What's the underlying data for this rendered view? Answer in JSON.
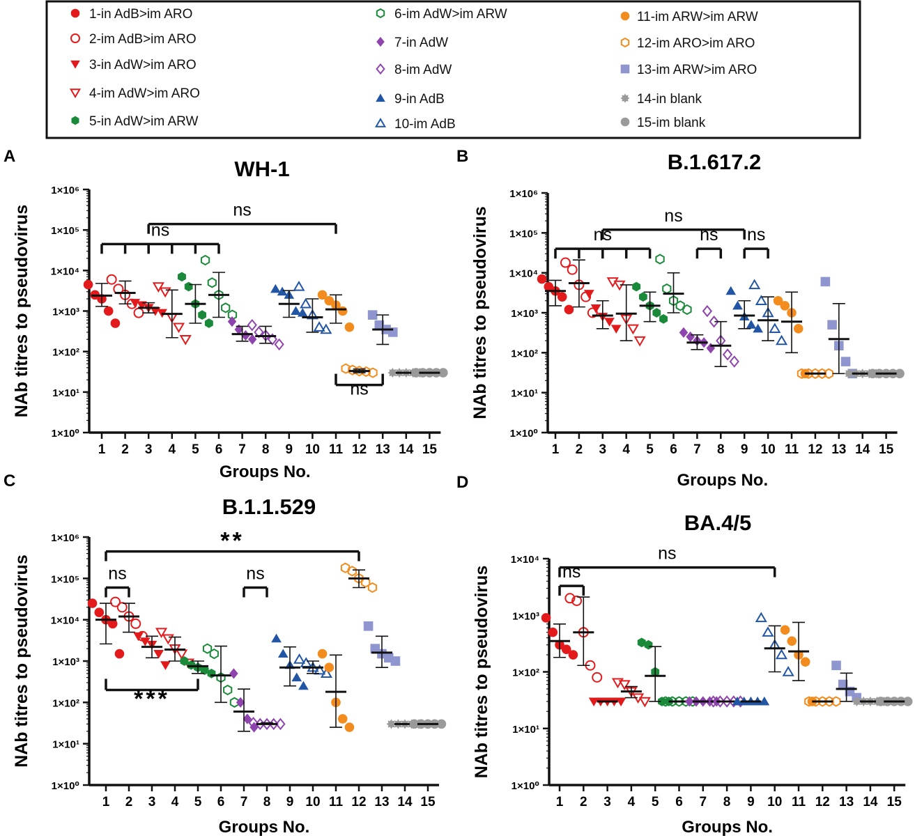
{
  "legend": [
    {
      "label": "1-in AdB>im ARO",
      "color": "#e31a1c",
      "marker": "circle-filled"
    },
    {
      "label": "2-im AdB>im ARO",
      "color": "#e31a1c",
      "marker": "circle-open"
    },
    {
      "label": "3-in AdW>im ARO",
      "color": "#e31a1c",
      "marker": "triangle-down-filled"
    },
    {
      "label": "4-im AdW>im ARO",
      "color": "#e31a1c",
      "marker": "triangle-down-open"
    },
    {
      "label": "5-in AdW>im ARW",
      "color": "#1a8a3a",
      "marker": "hexagon-filled"
    },
    {
      "label": "6-im AdW>im ARW",
      "color": "#1a8a3a",
      "marker": "hexagon-open"
    },
    {
      "label": "7-in AdW",
      "color": "#8e44ad",
      "marker": "diamond-filled"
    },
    {
      "label": "8-im AdW",
      "color": "#8e44ad",
      "marker": "diamond-open"
    },
    {
      "label": "9-in AdB",
      "color": "#2255a4",
      "marker": "triangle-up-filled"
    },
    {
      "label": "10-im AdB",
      "color": "#2255a4",
      "marker": "triangle-up-open"
    },
    {
      "label": "11-im ARW>im ARW",
      "color": "#f28c1e",
      "marker": "circle-filled"
    },
    {
      "label": "12-im ARO>im ARO",
      "color": "#f28c1e",
      "marker": "hexagon-open"
    },
    {
      "label": "13-im ARW>im ARO",
      "color": "#8f96cf",
      "marker": "square-filled"
    },
    {
      "label": "14-in blank",
      "color": "#9a9a9a",
      "marker": "star-filled"
    },
    {
      "label": "15-im blank",
      "color": "#9a9a9a",
      "marker": "circle-filled"
    }
  ],
  "chart_data": [
    {
      "panel": "A",
      "type": "scatter",
      "title": "WH-1",
      "xlabel": "Groups No.",
      "ylabel": "NAb titres to pseudovirus",
      "yscale": "log",
      "ylim": [
        1,
        1000000
      ],
      "yticks": [
        "1×10⁰",
        "1×10¹",
        "1×10²",
        "1×10³",
        "1×10⁴",
        "1×10⁵",
        "1×10⁶"
      ],
      "categories": [
        "1",
        "2",
        "3",
        "4",
        "5",
        "6",
        "7",
        "8",
        "9",
        "10",
        "11",
        "12",
        "13",
        "14",
        "15"
      ],
      "series": [
        {
          "group": 1,
          "values": [
            4500,
            2500,
            2000,
            1000,
            500
          ],
          "mean": 2400,
          "sd_low": 1300,
          "sd_high": 4800
        },
        {
          "group": 2,
          "values": [
            6000,
            3500,
            2500,
            1500,
            900
          ],
          "mean": 2800,
          "sd_low": 1500,
          "sd_high": 5500
        },
        {
          "group": 3,
          "values": [
            1600,
            1400,
            1200,
            1000,
            900
          ],
          "mean": 1200,
          "sd_low": 900,
          "sd_high": 1600
        },
        {
          "group": 4,
          "values": [
            4000,
            3000,
            700,
            400,
            200
          ],
          "mean": 850,
          "sd_low": 220,
          "sd_high": 3300
        },
        {
          "group": 5,
          "values": [
            7000,
            4000,
            1500,
            800,
            500
          ],
          "mean": 1500,
          "sd_low": 500,
          "sd_high": 4500
        },
        {
          "group": 6,
          "values": [
            18000,
            5000,
            2500,
            1200,
            800
          ],
          "mean": 2500,
          "sd_low": 700,
          "sd_high": 9000
        },
        {
          "group": 7,
          "values": [
            550,
            350,
            250,
            200
          ],
          "mean": 270,
          "sd_low": 180,
          "sd_high": 420
        },
        {
          "group": 8,
          "values": [
            450,
            300,
            250,
            200,
            150
          ],
          "mean": 240,
          "sd_low": 160,
          "sd_high": 420
        },
        {
          "group": 9,
          "values": [
            3500,
            3000,
            2500,
            1000,
            900
          ],
          "mean": 1500,
          "sd_low": 700,
          "sd_high": 3200
        },
        {
          "group": 10,
          "values": [
            4000,
            1500,
            800,
            400,
            350
          ],
          "mean": 700,
          "sd_low": 300,
          "sd_high": 2000
        },
        {
          "group": 11,
          "values": [
            2500,
            1800,
            1400,
            1000,
            400
          ],
          "mean": 1100,
          "sd_low": 500,
          "sd_high": 2500
        },
        {
          "group": 12,
          "values": [
            38,
            35,
            33,
            32,
            30
          ],
          "mean": 33,
          "sd_low": 30,
          "sd_high": 37
        },
        {
          "group": 13,
          "values": [
            800,
            450,
            350,
            300
          ],
          "mean": 350,
          "sd_low": 150,
          "sd_high": 800
        },
        {
          "group": 14,
          "values": [
            30,
            30,
            30,
            30,
            30
          ],
          "mean": 30,
          "sd_low": 30,
          "sd_high": 30
        },
        {
          "group": 15,
          "values": [
            30,
            30,
            30,
            30,
            30
          ],
          "mean": 30,
          "sd_low": 30,
          "sd_high": 30
        }
      ],
      "annotations": [
        {
          "text": "ns",
          "from": 1,
          "to": 6,
          "y": 45000,
          "ticks": [
            1,
            2,
            3,
            4,
            5,
            6
          ]
        },
        {
          "text": "ns",
          "from": 3,
          "to": 11,
          "y": 140000
        },
        {
          "text": "ns",
          "from": 11,
          "to": 13,
          "y": 15,
          "direction": "up"
        }
      ]
    },
    {
      "panel": "B",
      "type": "scatter",
      "title": "B.1.617.2",
      "xlabel": "Groups No.",
      "ylabel": "NAb titres to pseudovirus",
      "yscale": "log",
      "ylim": [
        1,
        1000000
      ],
      "yticks": [
        "1×10⁰",
        "1×10¹",
        "1×10²",
        "1×10³",
        "1×10⁴",
        "1×10⁵",
        "1×10⁶"
      ],
      "categories": [
        "1",
        "2",
        "3",
        "4",
        "5",
        "6",
        "7",
        "8",
        "9",
        "10",
        "11",
        "12",
        "13",
        "14",
        "15"
      ],
      "series": [
        {
          "group": 1,
          "values": [
            7000,
            4500,
            3500,
            2500,
            1200
          ],
          "mean": 3500,
          "sd_low": 1500,
          "sd_high": 6500
        },
        {
          "group": 2,
          "values": [
            18000,
            12000,
            5000,
            2500,
            1000
          ],
          "mean": 5500,
          "sd_low": 1400,
          "sd_high": 21000
        },
        {
          "group": 3,
          "values": [
            3000,
            1300,
            800,
            600,
            400
          ],
          "mean": 850,
          "sd_low": 400,
          "sd_high": 2000
        },
        {
          "group": 4,
          "values": [
            6000,
            5000,
            700,
            400,
            200
          ],
          "mean": 950,
          "sd_low": 200,
          "sd_high": 5000
        },
        {
          "group": 5,
          "values": [
            4500,
            2500,
            1500,
            1000,
            700
          ],
          "mean": 1500,
          "sd_low": 600,
          "sd_high": 3300
        },
        {
          "group": 6,
          "values": [
            22000,
            4000,
            2000,
            1500,
            1200
          ],
          "mean": 3000,
          "sd_low": 1000,
          "sd_high": 10000
        },
        {
          "group": 7,
          "values": [
            320,
            250,
            200,
            180,
            130
          ],
          "mean": 180,
          "sd_low": 120,
          "sd_high": 280
        },
        {
          "group": 8,
          "values": [
            1100,
            600,
            200,
            90,
            60
          ],
          "mean": 150,
          "sd_low": 45,
          "sd_high": 600
        },
        {
          "group": 9,
          "values": [
            3500,
            1500,
            800,
            500,
            400
          ],
          "mean": 850,
          "sd_low": 400,
          "sd_high": 2000
        },
        {
          "group": 10,
          "values": [
            5000,
            2000,
            1000,
            400,
            200
          ],
          "mean": 650,
          "sd_low": 200,
          "sd_high": 2500
        },
        {
          "group": 11,
          "values": [
            2000,
            1500,
            1000,
            400,
            30
          ],
          "mean": 600,
          "sd_low": 100,
          "sd_high": 3300
        },
        {
          "group": 12,
          "values": [
            30,
            30,
            30,
            30,
            30
          ],
          "mean": 30,
          "sd_low": 30,
          "sd_high": 30
        },
        {
          "group": 13,
          "values": [
            6000,
            500,
            150,
            60,
            30
          ],
          "mean": 220,
          "sd_low": 30,
          "sd_high": 1700
        },
        {
          "group": 14,
          "values": [
            30,
            30,
            30,
            30,
            30
          ],
          "mean": 30,
          "sd_low": 30,
          "sd_high": 30
        },
        {
          "group": 15,
          "values": [
            30,
            30,
            30,
            30,
            30
          ],
          "mean": 30,
          "sd_low": 30,
          "sd_high": 30
        }
      ],
      "annotations": [
        {
          "text": "ns",
          "from": 1,
          "to": 5,
          "y": 40000,
          "ticks": [
            1,
            2,
            3,
            4,
            5
          ]
        },
        {
          "text": "ns",
          "from": 3,
          "to": 9,
          "y": 120000
        },
        {
          "text": "ns",
          "from": 7,
          "to": 8,
          "y": 40000
        },
        {
          "text": "ns",
          "from": 9,
          "to": 10,
          "y": 40000
        }
      ]
    },
    {
      "panel": "C",
      "type": "scatter",
      "title": "B.1.1.529",
      "xlabel": "Groups No.",
      "ylabel": "NAb titres to pseudovirus",
      "yscale": "log",
      "ylim": [
        1,
        1000000
      ],
      "yticks": [
        "1×10⁰",
        "1×10¹",
        "1×10²",
        "1×10³",
        "1×10⁴",
        "1×10⁵",
        "1×10⁶"
      ],
      "categories": [
        "1",
        "2",
        "3",
        "4",
        "5",
        "6",
        "7",
        "8",
        "9",
        "10",
        "11",
        "12",
        "13",
        "14",
        "15"
      ],
      "series": [
        {
          "group": 1,
          "values": [
            25000,
            15000,
            10000,
            8000,
            1500
          ],
          "mean": 10000,
          "sd_low": 2600,
          "sd_high": 25000
        },
        {
          "group": 2,
          "values": [
            27000,
            20000,
            12000,
            8000,
            4000
          ],
          "mean": 12000,
          "sd_low": 5000,
          "sd_high": 25000
        },
        {
          "group": 3,
          "values": [
            4000,
            3000,
            2500,
            1500,
            800
          ],
          "mean": 2200,
          "sd_low": 1200,
          "sd_high": 4000
        },
        {
          "group": 4,
          "values": [
            5000,
            3500,
            2000,
            1500,
            900
          ],
          "mean": 1900,
          "sd_low": 1000,
          "sd_high": 3800
        },
        {
          "group": 5,
          "values": [
            1000,
            800,
            700,
            600,
            500
          ],
          "mean": 750,
          "sd_low": 500,
          "sd_high": 1000
        },
        {
          "group": 6,
          "values": [
            2000,
            1500,
            400,
            200,
            100
          ],
          "mean": 450,
          "sd_low": 100,
          "sd_high": 2300
        },
        {
          "group": 7,
          "values": [
            500,
            100,
            40,
            25
          ],
          "mean": 60,
          "sd_low": 20,
          "sd_high": 210
        },
        {
          "group": 8,
          "values": [
            32,
            30,
            30,
            30,
            30
          ],
          "mean": 30,
          "sd_low": 30,
          "sd_high": 32
        },
        {
          "group": 9,
          "values": [
            3500,
            1500,
            800,
            400,
            250
          ],
          "mean": 700,
          "sd_low": 250,
          "sd_high": 2200
        },
        {
          "group": 10,
          "values": [
            1100,
            900,
            700,
            600,
            500
          ],
          "mean": 700,
          "sd_low": 500,
          "sd_high": 1000
        },
        {
          "group": 11,
          "values": [
            1500,
            700,
            100,
            40,
            25
          ],
          "mean": 180,
          "sd_low": 25,
          "sd_high": 1400
        },
        {
          "group": 12,
          "values": [
            180000,
            150000,
            100000,
            80000,
            60000
          ],
          "mean": 100000,
          "sd_low": 60000,
          "sd_high": 160000
        },
        {
          "group": 13,
          "values": [
            7000,
            2000,
            1500,
            1200,
            1000
          ],
          "mean": 1600,
          "sd_low": 700,
          "sd_high": 4000
        },
        {
          "group": 14,
          "values": [
            30,
            30,
            30,
            30,
            30
          ],
          "mean": 30,
          "sd_low": 30,
          "sd_high": 30
        },
        {
          "group": 15,
          "values": [
            30,
            30,
            30,
            30,
            30
          ],
          "mean": 30,
          "sd_low": 30,
          "sd_high": 30
        }
      ],
      "annotations": [
        {
          "text": "ns",
          "from": 1,
          "to": 2,
          "y": 60000
        },
        {
          "text": "**",
          "from": 1,
          "to": 12,
          "y": 450000
        },
        {
          "text": "ns",
          "from": 7,
          "to": 8,
          "y": 60000
        },
        {
          "text": "***",
          "from": 1,
          "to": 5,
          "y": 200,
          "direction": "up"
        }
      ]
    },
    {
      "panel": "D",
      "type": "scatter",
      "title": "BA.4/5",
      "xlabel": "Groups No.",
      "ylabel": "NAb titres to pseudovirus",
      "yscale": "log",
      "ylim": [
        1,
        10000
      ],
      "yticks": [
        "1×10⁰",
        "1×10¹",
        "1×10²",
        "1×10³",
        "1×10⁴"
      ],
      "categories": [
        "1",
        "2",
        "3",
        "4",
        "5",
        "6",
        "7",
        "8",
        "9",
        "10",
        "11",
        "12",
        "13",
        "14",
        "15"
      ],
      "series": [
        {
          "group": 1,
          "values": [
            900,
            500,
            300,
            250,
            200
          ],
          "mean": 350,
          "sd_low": 180,
          "sd_high": 700
        },
        {
          "group": 2,
          "values": [
            2000,
            1800,
            500,
            130,
            80
          ],
          "mean": 500,
          "sd_low": 130,
          "sd_high": 2100
        },
        {
          "group": 3,
          "values": [
            30,
            30,
            30,
            30,
            30
          ],
          "mean": 30,
          "sd_low": 30,
          "sd_high": 30
        },
        {
          "group": 4,
          "values": [
            65,
            60,
            45,
            35,
            30
          ],
          "mean": 45,
          "sd_low": 35,
          "sd_high": 55
        },
        {
          "group": 5,
          "values": [
            330,
            300,
            100,
            30,
            30
          ],
          "mean": 85,
          "sd_low": 30,
          "sd_high": 280
        },
        {
          "group": 6,
          "values": [
            30,
            30,
            30,
            30,
            30
          ],
          "mean": 30,
          "sd_low": 30,
          "sd_high": 30
        },
        {
          "group": 7,
          "values": [
            30,
            30,
            30,
            30,
            30
          ],
          "mean": 30,
          "sd_low": 30,
          "sd_high": 30
        },
        {
          "group": 8,
          "values": [
            30,
            30,
            30,
            30,
            30
          ],
          "mean": 30,
          "sd_low": 30,
          "sd_high": 30
        },
        {
          "group": 9,
          "values": [
            30,
            30,
            30,
            30,
            30
          ],
          "mean": 30,
          "sd_low": 30,
          "sd_high": 30
        },
        {
          "group": 10,
          "values": [
            900,
            500,
            300,
            200,
            100
          ],
          "mean": 260,
          "sd_low": 100,
          "sd_high": 650
        },
        {
          "group": 11,
          "values": [
            550,
            350,
            200,
            150,
            30
          ],
          "mean": 230,
          "sd_low": 70,
          "sd_high": 750
        },
        {
          "group": 12,
          "values": [
            30,
            30,
            30,
            30,
            30
          ],
          "mean": 30,
          "sd_low": 30,
          "sd_high": 30
        },
        {
          "group": 13,
          "values": [
            130,
            60,
            45,
            35
          ],
          "mean": 50,
          "sd_low": 30,
          "sd_high": 95
        },
        {
          "group": 14,
          "values": [
            30,
            30,
            30,
            30,
            30
          ],
          "mean": 30,
          "sd_low": 30,
          "sd_high": 30
        },
        {
          "group": 15,
          "values": [
            30,
            30,
            30,
            30,
            30
          ],
          "mean": 30,
          "sd_low": 30,
          "sd_high": 30
        }
      ],
      "annotations": [
        {
          "text": "ns",
          "from": 1,
          "to": 2,
          "y": 3300
        },
        {
          "text": "ns",
          "from": 1,
          "to": 10,
          "y": 7000
        }
      ]
    }
  ]
}
